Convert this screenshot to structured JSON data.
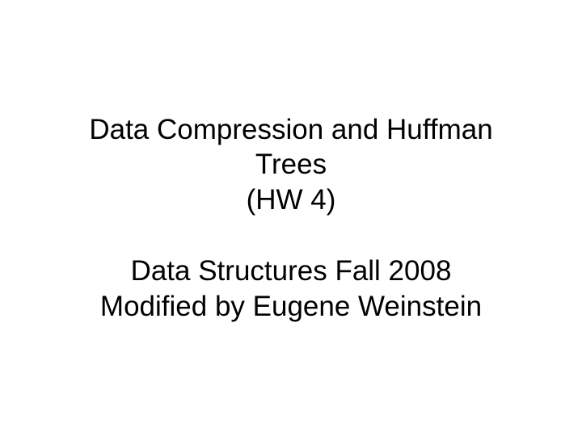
{
  "slide": {
    "title_line1": "Data Compression and Huffman",
    "title_line2": "Trees",
    "title_line3": "(HW 4)",
    "subtitle_line1": "Data Structures Fall 2008",
    "subtitle_line2": "Modified by Eugene Weinstein",
    "text_color": "#000000",
    "background_color": "#ffffff",
    "font_size": 35,
    "font_family": "Arial"
  }
}
